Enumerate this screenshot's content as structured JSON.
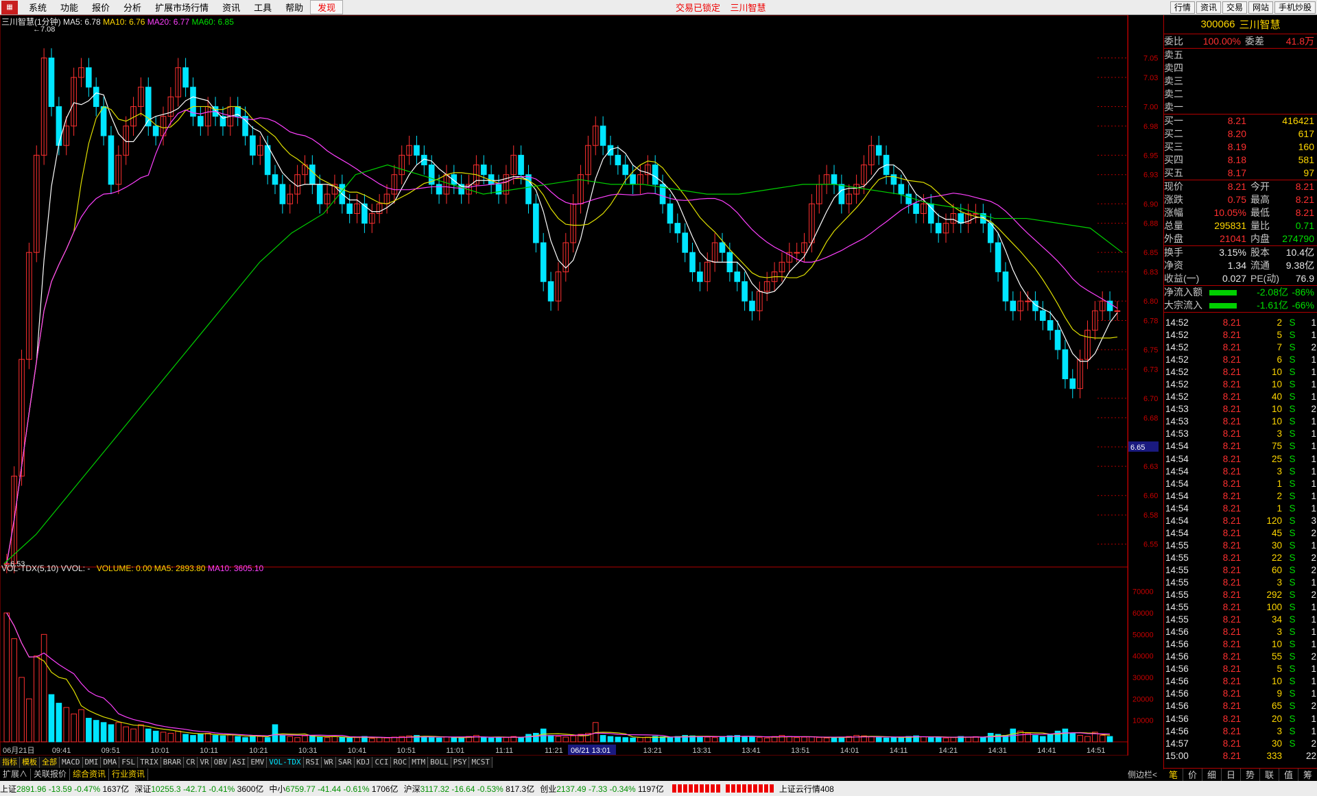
{
  "menu": {
    "items": [
      "系统",
      "功能",
      "报价",
      "分析",
      "扩展市场行情",
      "资讯",
      "工具",
      "帮助"
    ],
    "discover": "发现",
    "status_center": "交易已锁定    三川智慧",
    "right_buttons": [
      "行情",
      "资讯",
      "交易",
      "网站",
      "手机炒股"
    ]
  },
  "chart": {
    "title": "三川智慧(1分钟)",
    "ma5": "MA5: 6.78",
    "ma10": "MA10: 6.76",
    "ma20": "MA20: 6.77",
    "ma60": "MA60: 6.85",
    "high_label": "7.08",
    "low_label": "6.53",
    "cur_price_label": "6.65",
    "vol_title": "VOL-TDX(5,10)  VVOL: -",
    "vol_values": "VOLUME: 0.00  MA5: 2893.80",
    "vol_ma10": "MA10: 3605.10",
    "time_cursor": "06/21 13:01",
    "period": "1分钟",
    "colors": {
      "ma5": "#ffffff",
      "ma10": "#e0e000",
      "ma20": "#ff40ff",
      "ma60": "#00d000",
      "up": "#ff3030",
      "down": "#00e5ff"
    }
  },
  "chart_data": {
    "type": "candlestick",
    "price_axis": [
      "7.05",
      "7.03",
      "7.00",
      "6.98",
      "6.95",
      "6.93",
      "6.90",
      "6.88",
      "6.85",
      "6.83",
      "6.80",
      "6.78",
      "6.75",
      "6.73",
      "6.70",
      "6.68",
      "6.65",
      "6.63",
      "6.60",
      "6.58",
      "6.55"
    ],
    "ylim": [
      6.53,
      7.08
    ],
    "volume_axis": [
      "70000",
      "60000",
      "50000",
      "40000",
      "30000",
      "20000",
      "10000"
    ],
    "vol_ylim": [
      0,
      75000
    ],
    "time_labels": [
      "06月21日",
      "09:41",
      "09:51",
      "10:01",
      "10:11",
      "10:21",
      "10:31",
      "10:41",
      "10:51",
      "11:01",
      "11:11",
      "11:21",
      "13:11",
      "13:21",
      "13:31",
      "13:41",
      "13:51",
      "14:01",
      "14:11",
      "14:21",
      "14:31",
      "14:41",
      "14:51"
    ],
    "closes": [
      6.53,
      6.62,
      6.74,
      6.85,
      6.95,
      7.05,
      7.0,
      6.96,
      6.98,
      7.03,
      7.04,
      7.02,
      7.0,
      6.97,
      6.92,
      6.95,
      6.98,
      7.0,
      7.02,
      6.98,
      6.97,
      6.99,
      7.01,
      7.04,
      7.02,
      6.99,
      6.98,
      7.0,
      6.99,
      6.98,
      7.0,
      6.99,
      6.97,
      6.95,
      6.96,
      6.93,
      6.92,
      6.9,
      6.91,
      6.93,
      6.94,
      6.92,
      6.9,
      6.91,
      6.92,
      6.9,
      6.89,
      6.9,
      6.88,
      6.89,
      6.9,
      6.91,
      6.93,
      6.95,
      6.96,
      6.95,
      6.94,
      6.92,
      6.91,
      6.93,
      6.92,
      6.91,
      6.92,
      6.94,
      6.93,
      6.92,
      6.91,
      6.93,
      6.95,
      6.93,
      6.9,
      6.86,
      6.82,
      6.8,
      6.83,
      6.86,
      6.9,
      6.93,
      6.96,
      6.98,
      6.96,
      6.95,
      6.94,
      6.93,
      6.92,
      6.93,
      6.94,
      6.92,
      6.9,
      6.88,
      6.87,
      6.85,
      6.83,
      6.82,
      6.84,
      6.86,
      6.85,
      6.83,
      6.82,
      6.8,
      6.79,
      6.81,
      6.82,
      6.83,
      6.84,
      6.85,
      6.85,
      6.86,
      6.9,
      6.92,
      6.93,
      6.92,
      6.9,
      6.91,
      6.92,
      6.94,
      6.96,
      6.95,
      6.93,
      6.92,
      6.91,
      6.9,
      6.89,
      6.9,
      6.88,
      6.87,
      6.88,
      6.89,
      6.88,
      6.89,
      6.89,
      6.88,
      6.86,
      6.83,
      6.8,
      6.79,
      6.8,
      6.8,
      6.79,
      6.78,
      6.77,
      6.75,
      6.72,
      6.71,
      6.74,
      6.77,
      6.79,
      6.8,
      6.79,
      6.79
    ],
    "volumes": [
      60000,
      48000,
      30000,
      20000,
      40000,
      50000,
      22000,
      18000,
      16000,
      13000,
      15000,
      11000,
      10000,
      9000,
      8000,
      9000,
      7000,
      6000,
      8000,
      6000,
      5000,
      4500,
      4000,
      5000,
      3500,
      3000,
      3500,
      4000,
      3000,
      2800,
      3200,
      2500,
      2000,
      3000,
      2500,
      2000,
      8000,
      3000,
      2500,
      2000,
      2800,
      3000,
      2200,
      2000,
      2400,
      2100,
      1800,
      2000,
      2500,
      1600,
      2000,
      1800,
      2200,
      2500,
      2800,
      3000,
      2500,
      2000,
      1800,
      2200,
      2000,
      1800,
      2500,
      3000,
      2000,
      1800,
      2200,
      2000,
      2500,
      2000,
      3500,
      4000,
      6000,
      3000,
      2500,
      2200,
      2800,
      3500,
      4000,
      9000,
      3000,
      2500,
      2200,
      2000,
      1800,
      2000,
      2200,
      2600,
      2400,
      2000,
      2500,
      3000,
      2800,
      2600,
      2200,
      2000,
      2500,
      2800,
      3000,
      2500,
      2200,
      2000,
      1800,
      2500,
      3000,
      2500,
      2000,
      2200,
      2400,
      2000,
      1800,
      2000,
      2200,
      2500,
      3000,
      2800,
      2400,
      2000,
      1800,
      2200,
      2000,
      2500,
      2800,
      2400,
      2000,
      2200,
      1800,
      2000,
      2500,
      2200,
      2400,
      2000,
      4000,
      3500,
      3000,
      6000,
      5000,
      4000,
      3000,
      2500,
      3500,
      5000,
      6000,
      4000,
      3000,
      2500,
      4500,
      3000,
      2500
    ],
    "ma60_points": [
      6.53,
      6.56,
      6.6,
      6.64,
      6.68,
      6.72,
      6.76,
      6.8,
      6.84,
      6.87,
      6.89,
      6.93,
      6.94,
      6.93,
      6.92,
      6.91,
      6.915,
      6.92,
      6.925,
      6.92,
      6.92,
      6.915,
      6.91,
      6.91,
      6.915,
      6.92,
      6.92,
      6.915,
      6.91,
      6.9,
      6.895,
      6.885,
      6.885,
      6.88,
      6.875,
      6.85
    ]
  },
  "quote": {
    "code": "300066",
    "name": "三川智慧",
    "weibi_label": "委比",
    "weibi": "100.00%",
    "weicha_label": "委差",
    "weicha": "41.8万",
    "sells": [
      {
        "label": "卖五",
        "price": "",
        "vol": ""
      },
      {
        "label": "卖四",
        "price": "",
        "vol": ""
      },
      {
        "label": "卖三",
        "price": "",
        "vol": ""
      },
      {
        "label": "卖二",
        "price": "",
        "vol": ""
      },
      {
        "label": "卖一",
        "price": "",
        "vol": ""
      }
    ],
    "buys": [
      {
        "label": "买一",
        "price": "8.21",
        "vol": "416421"
      },
      {
        "label": "买二",
        "price": "8.20",
        "vol": "617"
      },
      {
        "label": "买三",
        "price": "8.19",
        "vol": "160"
      },
      {
        "label": "买四",
        "price": "8.18",
        "vol": "581"
      },
      {
        "label": "买五",
        "price": "8.17",
        "vol": "97"
      }
    ],
    "stats": [
      {
        "l1": "现价",
        "v1": "8.21",
        "c1": "red",
        "l2": "今开",
        "v2": "8.21",
        "c2": "red"
      },
      {
        "l1": "涨跌",
        "v1": "0.75",
        "c1": "red",
        "l2": "最高",
        "v2": "8.21",
        "c2": "red"
      },
      {
        "l1": "涨幅",
        "v1": "10.05%",
        "c1": "red",
        "l2": "最低",
        "v2": "8.21",
        "c2": "red"
      },
      {
        "l1": "总量",
        "v1": "295831",
        "c1": "yellow",
        "l2": "量比",
        "v2": "0.71",
        "c2": "green"
      },
      {
        "l1": "外盘",
        "v1": "21041",
        "c1": "red",
        "l2": "内盘",
        "v2": "274790",
        "c2": "green"
      }
    ],
    "stats2": [
      {
        "l1": "换手",
        "v1": "3.15%",
        "l2": "股本",
        "v2": "10.4亿"
      },
      {
        "l1": "净资",
        "v1": "1.34",
        "l2": "流通",
        "v2": "9.38亿"
      },
      {
        "l1": "收益(一)",
        "v1": "0.027",
        "l2": "PE(动)",
        "v2": "76.9"
      }
    ],
    "flows": [
      {
        "label": "净流入额",
        "value": "-2.08亿",
        "pct": "-86%"
      },
      {
        "label": "大宗流入",
        "value": "-1.61亿",
        "pct": "-66%"
      }
    ]
  },
  "trades": [
    [
      "14:52",
      "8.21",
      "2",
      "S",
      "1"
    ],
    [
      "14:52",
      "8.21",
      "5",
      "S",
      "1"
    ],
    [
      "14:52",
      "8.21",
      "7",
      "S",
      "2"
    ],
    [
      "14:52",
      "8.21",
      "6",
      "S",
      "1"
    ],
    [
      "14:52",
      "8.21",
      "10",
      "S",
      "1"
    ],
    [
      "14:52",
      "8.21",
      "10",
      "S",
      "1"
    ],
    [
      "14:52",
      "8.21",
      "40",
      "S",
      "1"
    ],
    [
      "14:53",
      "8.21",
      "10",
      "S",
      "2"
    ],
    [
      "14:53",
      "8.21",
      "10",
      "S",
      "1"
    ],
    [
      "14:53",
      "8.21",
      "3",
      "S",
      "1"
    ],
    [
      "14:54",
      "8.21",
      "75",
      "S",
      "1"
    ],
    [
      "14:54",
      "8.21",
      "25",
      "S",
      "1"
    ],
    [
      "14:54",
      "8.21",
      "3",
      "S",
      "1"
    ],
    [
      "14:54",
      "8.21",
      "1",
      "S",
      "1"
    ],
    [
      "14:54",
      "8.21",
      "2",
      "S",
      "1"
    ],
    [
      "14:54",
      "8.21",
      "1",
      "S",
      "1"
    ],
    [
      "14:54",
      "8.21",
      "120",
      "S",
      "3"
    ],
    [
      "14:54",
      "8.21",
      "45",
      "S",
      "2"
    ],
    [
      "14:55",
      "8.21",
      "30",
      "S",
      "1"
    ],
    [
      "14:55",
      "8.21",
      "22",
      "S",
      "2"
    ],
    [
      "14:55",
      "8.21",
      "60",
      "S",
      "2"
    ],
    [
      "14:55",
      "8.21",
      "3",
      "S",
      "1"
    ],
    [
      "14:55",
      "8.21",
      "292",
      "S",
      "2"
    ],
    [
      "14:55",
      "8.21",
      "100",
      "S",
      "1"
    ],
    [
      "14:55",
      "8.21",
      "34",
      "S",
      "1"
    ],
    [
      "14:56",
      "8.21",
      "3",
      "S",
      "1"
    ],
    [
      "14:56",
      "8.21",
      "10",
      "S",
      "1"
    ],
    [
      "14:56",
      "8.21",
      "55",
      "S",
      "2"
    ],
    [
      "14:56",
      "8.21",
      "5",
      "S",
      "1"
    ],
    [
      "14:56",
      "8.21",
      "10",
      "S",
      "1"
    ],
    [
      "14:56",
      "8.21",
      "9",
      "S",
      "1"
    ],
    [
      "14:56",
      "8.21",
      "65",
      "S",
      "2"
    ],
    [
      "14:56",
      "8.21",
      "20",
      "S",
      "1"
    ],
    [
      "14:56",
      "8.21",
      "3",
      "S",
      "1"
    ],
    [
      "14:57",
      "8.21",
      "30",
      "S",
      "2"
    ],
    [
      "15:00",
      "8.21",
      "333",
      "",
      "22"
    ]
  ],
  "right_tabs": [
    "笔",
    "价",
    "细",
    "日",
    "势",
    "联",
    "值",
    "筹"
  ],
  "indicator_tabs": [
    "指标",
    "模板",
    "全部",
    "MACD",
    "DMI",
    "DMA",
    "FSL",
    "TRIX",
    "BRAR",
    "CR",
    "VR",
    "OBV",
    "ASI",
    "EMV",
    "VOL-TDX",
    "RSI",
    "WR",
    "SAR",
    "KDJ",
    "CCI",
    "ROC",
    "MTM",
    "BOLL",
    "PSY",
    "MCST"
  ],
  "sub_tabs": [
    "扩展∧",
    "关联报价",
    "综合资讯",
    "行业资讯"
  ],
  "sidebar_toggle": "侧边栏<",
  "status": {
    "indices": [
      {
        "name": "上证",
        "v": "2891.96",
        "chg": "-13.59",
        "pct": "-0.47%",
        "amt": "1637亿"
      },
      {
        "name": "深证",
        "v": "10255.3",
        "chg": "-42.71",
        "pct": "-0.41%",
        "amt": "3600亿"
      },
      {
        "name": "中小",
        "v": "6759.77",
        "chg": "-41.44",
        "pct": "-0.61%",
        "amt": "1706亿"
      },
      {
        "name": "沪深",
        "v": "3117.32",
        "chg": "-16.64",
        "pct": "-0.53%",
        "amt": "817.3亿"
      },
      {
        "name": "创业",
        "v": "2137.49",
        "chg": "-7.33",
        "pct": "-0.34%",
        "amt": "1197亿"
      }
    ],
    "cloud": "上证云行情408"
  }
}
